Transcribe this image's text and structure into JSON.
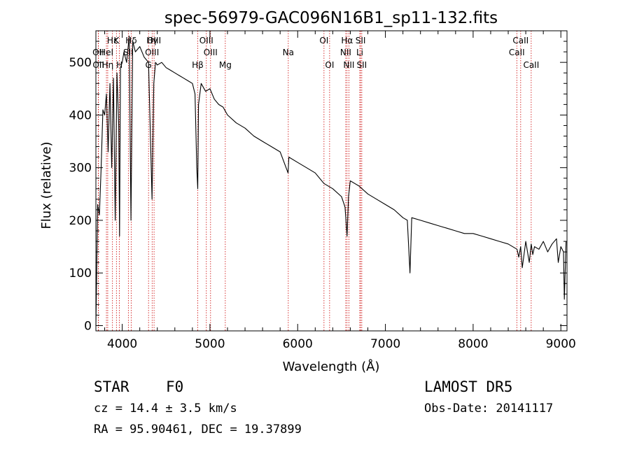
{
  "chart_data": {
    "type": "line",
    "title": "spec-56979-GAC096N16B1_sp11-132.fits",
    "xlabel": "Wavelength (Å)",
    "ylabel": "Flux (relative)",
    "xlim": [
      3700,
      9070
    ],
    "ylim": [
      -10,
      560
    ],
    "xticks": [
      4000,
      5000,
      6000,
      7000,
      8000,
      9000
    ],
    "yticks": [
      0,
      100,
      200,
      300,
      400,
      500
    ],
    "grid": false,
    "series": [
      {
        "x": [
          3700,
          3720,
          3740,
          3760,
          3780,
          3800,
          3820,
          3840,
          3860,
          3880,
          3900,
          3920,
          3940,
          3960,
          3970,
          3980,
          4000,
          4020,
          4050,
          4080,
          4100,
          4120,
          4150,
          4200,
          4250,
          4300,
          4340,
          4360,
          4380,
          4400,
          4450,
          4500,
          4550,
          4600,
          4650,
          4700,
          4750,
          4800,
          4830,
          4850,
          4861,
          4870,
          4900,
          4950,
          5000,
          5050,
          5100,
          5150,
          5200,
          5300,
          5400,
          5500,
          5600,
          5700,
          5800,
          5890,
          5900,
          6000,
          6100,
          6200,
          6300,
          6400,
          6500,
          6540,
          6563,
          6580,
          6600,
          6700,
          6800,
          6900,
          7000,
          7100,
          7200,
          7250,
          7280,
          7300,
          7400,
          7500,
          7600,
          7700,
          7800,
          7900,
          8000,
          8100,
          8200,
          8300,
          8400,
          8500,
          8520,
          8542,
          8560,
          8600,
          8640,
          8662,
          8680,
          8700,
          8750,
          8800,
          8850,
          8900,
          8950,
          8970,
          9000,
          9030,
          9040,
          9060
        ],
        "y": [
          0,
          230,
          210,
          300,
          410,
          400,
          440,
          330,
          460,
          300,
          470,
          200,
          480,
          380,
          170,
          490,
          500,
          520,
          500,
          550,
          200,
          540,
          520,
          530,
          510,
          500,
          240,
          460,
          500,
          495,
          500,
          490,
          485,
          480,
          475,
          470,
          465,
          460,
          440,
          300,
          260,
          420,
          460,
          445,
          450,
          430,
          420,
          415,
          400,
          385,
          375,
          360,
          350,
          340,
          330,
          290,
          320,
          310,
          300,
          290,
          270,
          260,
          245,
          225,
          170,
          245,
          275,
          265,
          250,
          240,
          230,
          220,
          205,
          200,
          100,
          205,
          200,
          195,
          190,
          185,
          180,
          175,
          175,
          170,
          165,
          160,
          155,
          145,
          130,
          150,
          110,
          160,
          120,
          155,
          135,
          150,
          145,
          160,
          140,
          155,
          165,
          120,
          150,
          140,
          50,
          160
        ]
      }
    ],
    "line_labels": [
      {
        "text": "Hδ",
        "x": 4102,
        "row": 1
      },
      {
        "text": "K",
        "x": 3934,
        "row": 1
      },
      {
        "text": "Hε",
        "x": 3889,
        "row": 1
      },
      {
        "text": "Hγ",
        "x": 4341,
        "row": 1
      },
      {
        "text": "OIII",
        "x": 4363,
        "row": 1
      },
      {
        "text": "OII",
        "x": 3727,
        "row": 2
      },
      {
        "text": "HeI",
        "x": 3820,
        "row": 2
      },
      {
        "text": "SII",
        "x": 4070,
        "row": 2
      },
      {
        "text": "OIII",
        "x": 4340,
        "row": 2
      },
      {
        "text": "OII",
        "x": 3729,
        "row": 3
      },
      {
        "text": "Hη",
        "x": 3835,
        "row": 3
      },
      {
        "text": "H",
        "x": 3968,
        "row": 3
      },
      {
        "text": "G",
        "x": 4300,
        "row": 3
      },
      {
        "text": "Hβ",
        "x": 4861,
        "row": 3
      },
      {
        "text": "OIII",
        "x": 4959,
        "row": 1
      },
      {
        "text": "OIII",
        "x": 5007,
        "row": 2
      },
      {
        "text": "Mg",
        "x": 5175,
        "row": 3
      },
      {
        "text": "Na",
        "x": 5893,
        "row": 2
      },
      {
        "text": "OI",
        "x": 6300,
        "row": 1
      },
      {
        "text": "OI",
        "x": 6364,
        "row": 3
      },
      {
        "text": "Hα",
        "x": 6563,
        "row": 1
      },
      {
        "text": "SII",
        "x": 6717,
        "row": 1
      },
      {
        "text": "NII",
        "x": 6548,
        "row": 2
      },
      {
        "text": "Li",
        "x": 6708,
        "row": 2
      },
      {
        "text": "NII",
        "x": 6584,
        "row": 3
      },
      {
        "text": "SII",
        "x": 6731,
        "row": 3
      },
      {
        "text": "CaII",
        "x": 8498,
        "row": 2
      },
      {
        "text": "CaII",
        "x": 8542,
        "row": 1
      },
      {
        "text": "CaII",
        "x": 8662,
        "row": 3
      }
    ],
    "line_positions": [
      3727,
      3729,
      3820,
      3835,
      3889,
      3934,
      3968,
      4070,
      4102,
      4300,
      4341,
      4363,
      4861,
      4959,
      5007,
      5175,
      5893,
      6300,
      6364,
      6548,
      6563,
      6584,
      6708,
      6717,
      6731,
      8498,
      8542,
      8662
    ],
    "line_color": "#cc0000"
  },
  "info": {
    "object_class": "STAR",
    "subclass": "F0",
    "redshift": "cz = 14.4 ± 3.5 km/s",
    "coords": "RA =  95.90461, DEC =  19.37899",
    "survey": "LAMOST DR5",
    "obs_date": "Obs-Date: 20141117"
  }
}
